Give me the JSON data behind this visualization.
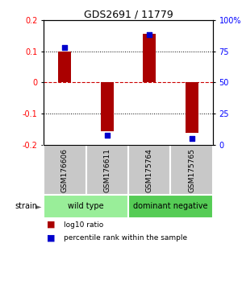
{
  "title": "GDS2691 / 11779",
  "samples": [
    "GSM176606",
    "GSM176611",
    "GSM175764",
    "GSM175765"
  ],
  "log10_ratio": [
    0.1,
    -0.155,
    0.155,
    -0.16
  ],
  "percentile_rank": [
    78,
    8,
    88,
    5
  ],
  "groups": [
    {
      "name": "wild type",
      "indices": [
        0,
        1
      ],
      "color": "#99EE99"
    },
    {
      "name": "dominant negative",
      "indices": [
        2,
        3
      ],
      "color": "#55CC55"
    }
  ],
  "ylim": [
    -0.2,
    0.2
  ],
  "yticks_left": [
    -0.2,
    -0.1,
    0,
    0.1,
    0.2
  ],
  "yticks_right": [
    0,
    25,
    50,
    75,
    100
  ],
  "bar_color": "#AA0000",
  "dot_color": "#0000CC",
  "zero_line_color": "#CC0000",
  "background_color": "#FFFFFF",
  "label_log10": "log10 ratio",
  "label_percentile": "percentile rank within the sample",
  "strain_label": "strain"
}
